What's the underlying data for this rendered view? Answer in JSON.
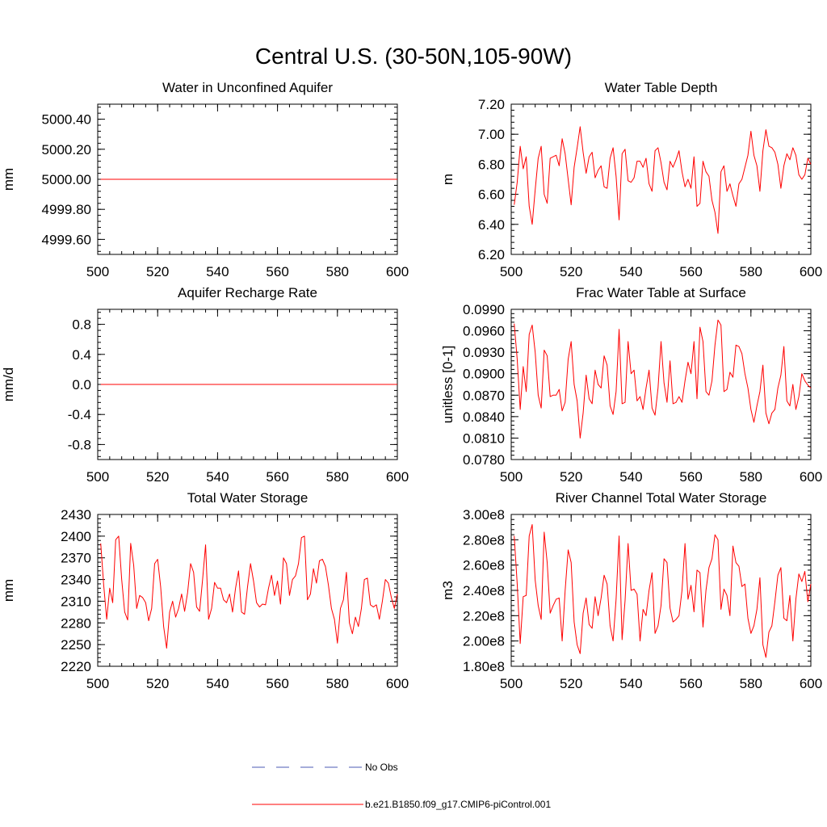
{
  "title": "Central U.S. (30-50N,105-90W)",
  "chart_data": [
    {
      "type": "line",
      "title": "Water in Unconfined Aquifer",
      "ylabel": "mm",
      "xlim": [
        500,
        600
      ],
      "xticks": [
        500,
        520,
        540,
        560,
        580,
        600
      ],
      "ylim": [
        4999.5,
        5000.5
      ],
      "yticks": [
        4999.6,
        4999.8,
        5000.0,
        5000.2,
        5000.4
      ],
      "ytick_labels": [
        "4999.60",
        "4999.80",
        "5000.00",
        "5000.20",
        "5000.40"
      ],
      "x_start": 501,
      "values": [
        5000,
        5000,
        5000,
        5000,
        5000,
        5000,
        5000,
        5000,
        5000,
        5000,
        5000,
        5000,
        5000,
        5000,
        5000,
        5000,
        5000,
        5000,
        5000,
        5000,
        5000,
        5000,
        5000,
        5000,
        5000,
        5000,
        5000,
        5000,
        5000,
        5000,
        5000,
        5000,
        5000,
        5000,
        5000,
        5000,
        5000,
        5000,
        5000,
        5000,
        5000,
        5000,
        5000,
        5000,
        5000,
        5000,
        5000,
        5000,
        5000,
        5000,
        5000,
        5000,
        5000,
        5000,
        5000,
        5000,
        5000,
        5000,
        5000,
        5000,
        5000,
        5000,
        5000,
        5000,
        5000,
        5000,
        5000,
        5000,
        5000,
        5000,
        5000,
        5000,
        5000,
        5000,
        5000,
        5000,
        5000,
        5000,
        5000,
        5000,
        5000,
        5000,
        5000,
        5000,
        5000,
        5000,
        5000,
        5000,
        5000,
        5000,
        5000,
        5000,
        5000,
        5000,
        5000,
        5000,
        5000,
        5000,
        5000,
        5000
      ]
    },
    {
      "type": "line",
      "title": "Water Table Depth",
      "ylabel": "m",
      "xlim": [
        500,
        600
      ],
      "xticks": [
        500,
        520,
        540,
        560,
        580,
        600
      ],
      "ylim": [
        6.2,
        7.2
      ],
      "yticks": [
        6.2,
        6.4,
        6.6,
        6.8,
        7.0,
        7.2
      ],
      "ytick_labels": [
        "6.20",
        "6.40",
        "6.60",
        "6.80",
        "7.00",
        "7.20"
      ],
      "x_start": 501,
      "values": [
        6.53,
        6.68,
        6.92,
        6.77,
        6.85,
        6.52,
        6.4,
        6.63,
        6.84,
        6.92,
        6.6,
        6.54,
        6.84,
        6.85,
        6.86,
        6.79,
        6.97,
        6.87,
        6.7,
        6.53,
        6.78,
        6.91,
        7.05,
        6.88,
        6.74,
        6.85,
        6.88,
        6.71,
        6.76,
        6.79,
        6.65,
        6.64,
        6.84,
        6.91,
        6.72,
        6.43,
        6.87,
        6.9,
        6.69,
        6.68,
        6.71,
        6.82,
        6.82,
        6.78,
        6.84,
        6.67,
        6.62,
        6.89,
        6.91,
        6.81,
        6.68,
        6.63,
        6.82,
        6.78,
        6.83,
        6.89,
        6.75,
        6.65,
        6.7,
        6.64,
        6.85,
        6.52,
        6.54,
        6.82,
        6.75,
        6.72,
        6.56,
        6.48,
        6.34,
        6.75,
        6.79,
        6.62,
        6.67,
        6.59,
        6.52,
        6.67,
        6.7,
        6.78,
        6.86,
        7.02,
        6.86,
        6.79,
        6.62,
        6.89,
        7.03,
        6.92,
        6.91,
        6.88,
        6.8,
        6.64,
        6.79,
        6.87,
        6.83,
        6.91,
        6.86,
        6.73,
        6.7,
        6.73,
        6.84,
        6.8
      ]
    },
    {
      "type": "line",
      "title": "Aquifer Recharge Rate",
      "ylabel": "mm/d",
      "xlim": [
        500,
        600
      ],
      "xticks": [
        500,
        520,
        540,
        560,
        580,
        600
      ],
      "ylim": [
        -1.0,
        1.0
      ],
      "yticks": [
        -0.8,
        -0.4,
        0.0,
        0.4,
        0.8
      ],
      "ytick_labels": [
        "-0.8",
        "-0.4",
        "0.0",
        "0.4",
        "0.8"
      ],
      "x_start": 501,
      "values": [
        0,
        0,
        0,
        0,
        0,
        0,
        0,
        0,
        0,
        0,
        0,
        0,
        0,
        0,
        0,
        0,
        0,
        0,
        0,
        0,
        0,
        0,
        0,
        0,
        0,
        0,
        0,
        0,
        0,
        0,
        0,
        0,
        0,
        0,
        0,
        0,
        0,
        0,
        0,
        0,
        0,
        0,
        0,
        0,
        0,
        0,
        0,
        0,
        0,
        0,
        0,
        0,
        0,
        0,
        0,
        0,
        0,
        0,
        0,
        0,
        0,
        0,
        0,
        0,
        0,
        0,
        0,
        0,
        0,
        0,
        0,
        0,
        0,
        0,
        0,
        0,
        0,
        0,
        0,
        0,
        0,
        0,
        0,
        0,
        0,
        0,
        0,
        0,
        0,
        0,
        0,
        0,
        0,
        0,
        0,
        0,
        0,
        0,
        0,
        0
      ]
    },
    {
      "type": "line",
      "title": "Frac Water Table at Surface",
      "ylabel": "unitless [0-1]",
      "xlim": [
        500,
        600
      ],
      "xticks": [
        500,
        520,
        540,
        560,
        580,
        600
      ],
      "ylim": [
        0.078,
        0.099
      ],
      "yticks": [
        0.078,
        0.081,
        0.084,
        0.087,
        0.09,
        0.093,
        0.096,
        0.099
      ],
      "ytick_labels": [
        "0.0780",
        "0.0810",
        "0.0840",
        "0.0870",
        "0.0900",
        "0.0930",
        "0.0960",
        "0.0990"
      ],
      "x_start": 501,
      "values": [
        0.097,
        0.092,
        0.085,
        0.091,
        0.0875,
        0.0955,
        0.0968,
        0.093,
        0.087,
        0.0852,
        0.0933,
        0.0925,
        0.0868,
        0.087,
        0.087,
        0.0878,
        0.0848,
        0.086,
        0.092,
        0.0945,
        0.0885,
        0.0862,
        0.081,
        0.0845,
        0.0898,
        0.0865,
        0.0858,
        0.0905,
        0.0885,
        0.088,
        0.0925,
        0.0912,
        0.0855,
        0.0843,
        0.0875,
        0.0962,
        0.0858,
        0.086,
        0.0945,
        0.09,
        0.0905,
        0.0862,
        0.0868,
        0.085,
        0.088,
        0.0905,
        0.0852,
        0.0842,
        0.088,
        0.0945,
        0.0887,
        0.086,
        0.0918,
        0.0858,
        0.086,
        0.0868,
        0.086,
        0.089,
        0.0916,
        0.09,
        0.0945,
        0.0865,
        0.0965,
        0.0945,
        0.0875,
        0.087,
        0.089,
        0.094,
        0.0975,
        0.0968,
        0.0875,
        0.0878,
        0.0902,
        0.0895,
        0.094,
        0.0938,
        0.0928,
        0.09,
        0.088,
        0.085,
        0.0832,
        0.0855,
        0.0875,
        0.0912,
        0.0845,
        0.083,
        0.0845,
        0.085,
        0.088,
        0.0898,
        0.0938,
        0.0862,
        0.0855,
        0.0885,
        0.085,
        0.0868,
        0.09,
        0.089,
        0.0884,
        0.088
      ]
    },
    {
      "type": "line",
      "title": "Total Water Storage",
      "ylabel": "mm",
      "xlim": [
        500,
        600
      ],
      "xticks": [
        500,
        520,
        540,
        560,
        580,
        600
      ],
      "ylim": [
        2220,
        2430
      ],
      "yticks": [
        2220,
        2250,
        2280,
        2310,
        2340,
        2370,
        2400,
        2430
      ],
      "ytick_labels": [
        "2220",
        "2250",
        "2280",
        "2310",
        "2340",
        "2370",
        "2400",
        "2430"
      ],
      "x_start": 501,
      "values": [
        2390,
        2332,
        2285,
        2328,
        2308,
        2395,
        2400,
        2340,
        2295,
        2284,
        2390,
        2360,
        2300,
        2318,
        2315,
        2308,
        2283,
        2300,
        2362,
        2368,
        2330,
        2275,
        2245,
        2295,
        2310,
        2288,
        2300,
        2320,
        2296,
        2322,
        2362,
        2350,
        2302,
        2296,
        2340,
        2388,
        2285,
        2300,
        2336,
        2328,
        2328,
        2312,
        2308,
        2320,
        2295,
        2328,
        2352,
        2295,
        2292,
        2330,
        2362,
        2338,
        2308,
        2302,
        2306,
        2305,
        2328,
        2346,
        2318,
        2338,
        2306,
        2370,
        2362,
        2318,
        2340,
        2345,
        2362,
        2398,
        2400,
        2312,
        2320,
        2355,
        2335,
        2366,
        2368,
        2358,
        2332,
        2300,
        2285,
        2252,
        2300,
        2312,
        2350,
        2280,
        2265,
        2288,
        2275,
        2300,
        2340,
        2342,
        2305,
        2302,
        2305,
        2285,
        2310,
        2340,
        2335,
        2315,
        2300,
        2320
      ]
    },
    {
      "type": "line",
      "title": "River Channel Total Water Storage",
      "ylabel": "m3",
      "xlim": [
        500,
        600
      ],
      "xticks": [
        500,
        520,
        540,
        560,
        580,
        600
      ],
      "ylim": [
        180000000,
        300000000
      ],
      "yticks": [
        180000000,
        200000000,
        220000000,
        240000000,
        260000000,
        280000000,
        300000000
      ],
      "ytick_labels": [
        "1.80e8",
        "2.00e8",
        "2.20e8",
        "2.40e8",
        "2.60e8",
        "2.80e8",
        "3.00e8"
      ],
      "x_start": 501,
      "values": [
        283000000,
        245000000,
        198000000,
        235000000,
        236000000,
        283000000,
        292000000,
        248000000,
        228000000,
        217000000,
        286000000,
        262000000,
        222000000,
        228000000,
        233000000,
        234000000,
        200000000,
        240000000,
        272000000,
        262000000,
        215000000,
        197000000,
        190000000,
        222000000,
        234000000,
        213000000,
        210000000,
        235000000,
        220000000,
        234000000,
        252000000,
        245000000,
        212000000,
        200000000,
        233000000,
        283000000,
        201000000,
        232000000,
        277000000,
        240000000,
        241000000,
        237000000,
        200000000,
        225000000,
        220000000,
        240000000,
        254000000,
        206000000,
        212000000,
        228000000,
        265000000,
        262000000,
        226000000,
        215000000,
        217000000,
        220000000,
        240000000,
        277000000,
        233000000,
        244000000,
        223000000,
        256000000,
        254000000,
        211000000,
        240000000,
        258000000,
        265000000,
        284000000,
        280000000,
        225000000,
        241000000,
        236000000,
        220000000,
        275000000,
        262000000,
        259000000,
        243000000,
        245000000,
        218000000,
        206000000,
        212000000,
        225000000,
        250000000,
        197000000,
        187000000,
        207000000,
        212000000,
        231000000,
        252000000,
        258000000,
        218000000,
        216000000,
        236000000,
        200000000,
        233000000,
        253000000,
        247000000,
        255000000,
        231000000,
        245000000
      ]
    }
  ],
  "legend": [
    {
      "label": "No Obs",
      "color": "#4b5bb5",
      "style": "dashed"
    },
    {
      "label": "b.e21.B1850.f09_g17.CMIP6-piControl.001",
      "color": "#ff0000",
      "style": "solid"
    }
  ],
  "colors": {
    "series": "#ff0000",
    "axis": "#000000"
  }
}
